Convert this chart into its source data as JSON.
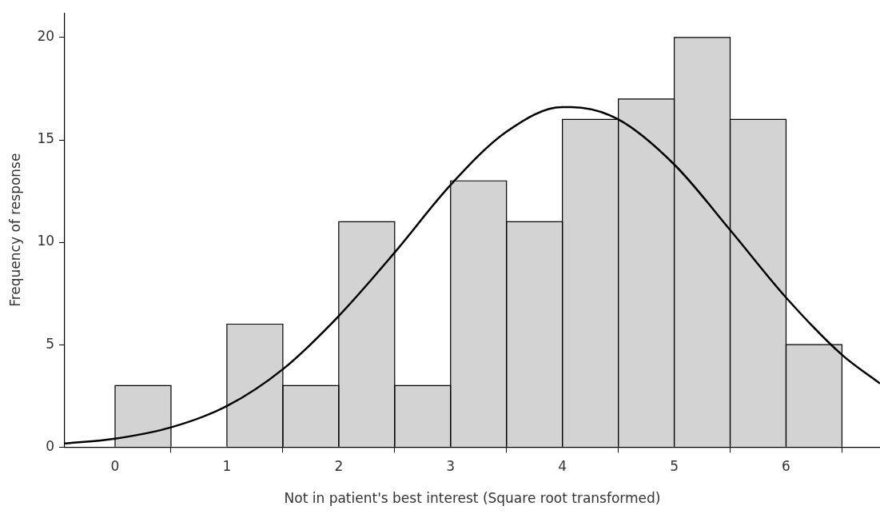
{
  "chart_data": {
    "type": "histogram",
    "xlabel": "Not in patient's best interest (Square root transformed)",
    "ylabel": "Frequency of response",
    "bins": [
      0,
      0.5,
      1,
      1.5,
      2,
      2.5,
      3,
      3.5,
      4,
      4.5,
      5,
      5.5,
      6,
      6.5
    ],
    "values": [
      3,
      0,
      6,
      3,
      11,
      3,
      13,
      11,
      16,
      17,
      20,
      16,
      5
    ],
    "color": "#d3d3d3",
    "series": [
      {
        "type": "line",
        "color": "#000000",
        "x": [
          -0.45,
          0,
          0.5,
          1,
          1.5,
          2,
          2.5,
          3,
          3.5,
          4,
          4.08,
          4.5,
          5,
          5.5,
          6,
          6.5,
          6.84
        ],
        "values": [
          0.17,
          0.41,
          0.96,
          2.0,
          3.8,
          6.4,
          9.5,
          12.8,
          15.4,
          16.6,
          16.6,
          16.0,
          13.8,
          10.6,
          7.3,
          4.5,
          3.1
        ]
      }
    ],
    "xlim": [
      -0.45,
      6.84
    ],
    "xticks": [
      0,
      1,
      2,
      3,
      4,
      5,
      6
    ],
    "ylim": [
      0,
      21.2
    ],
    "yticks": [
      0,
      5,
      10,
      15,
      20
    ],
    "grid": false,
    "legend": false,
    "marker": "none"
  }
}
